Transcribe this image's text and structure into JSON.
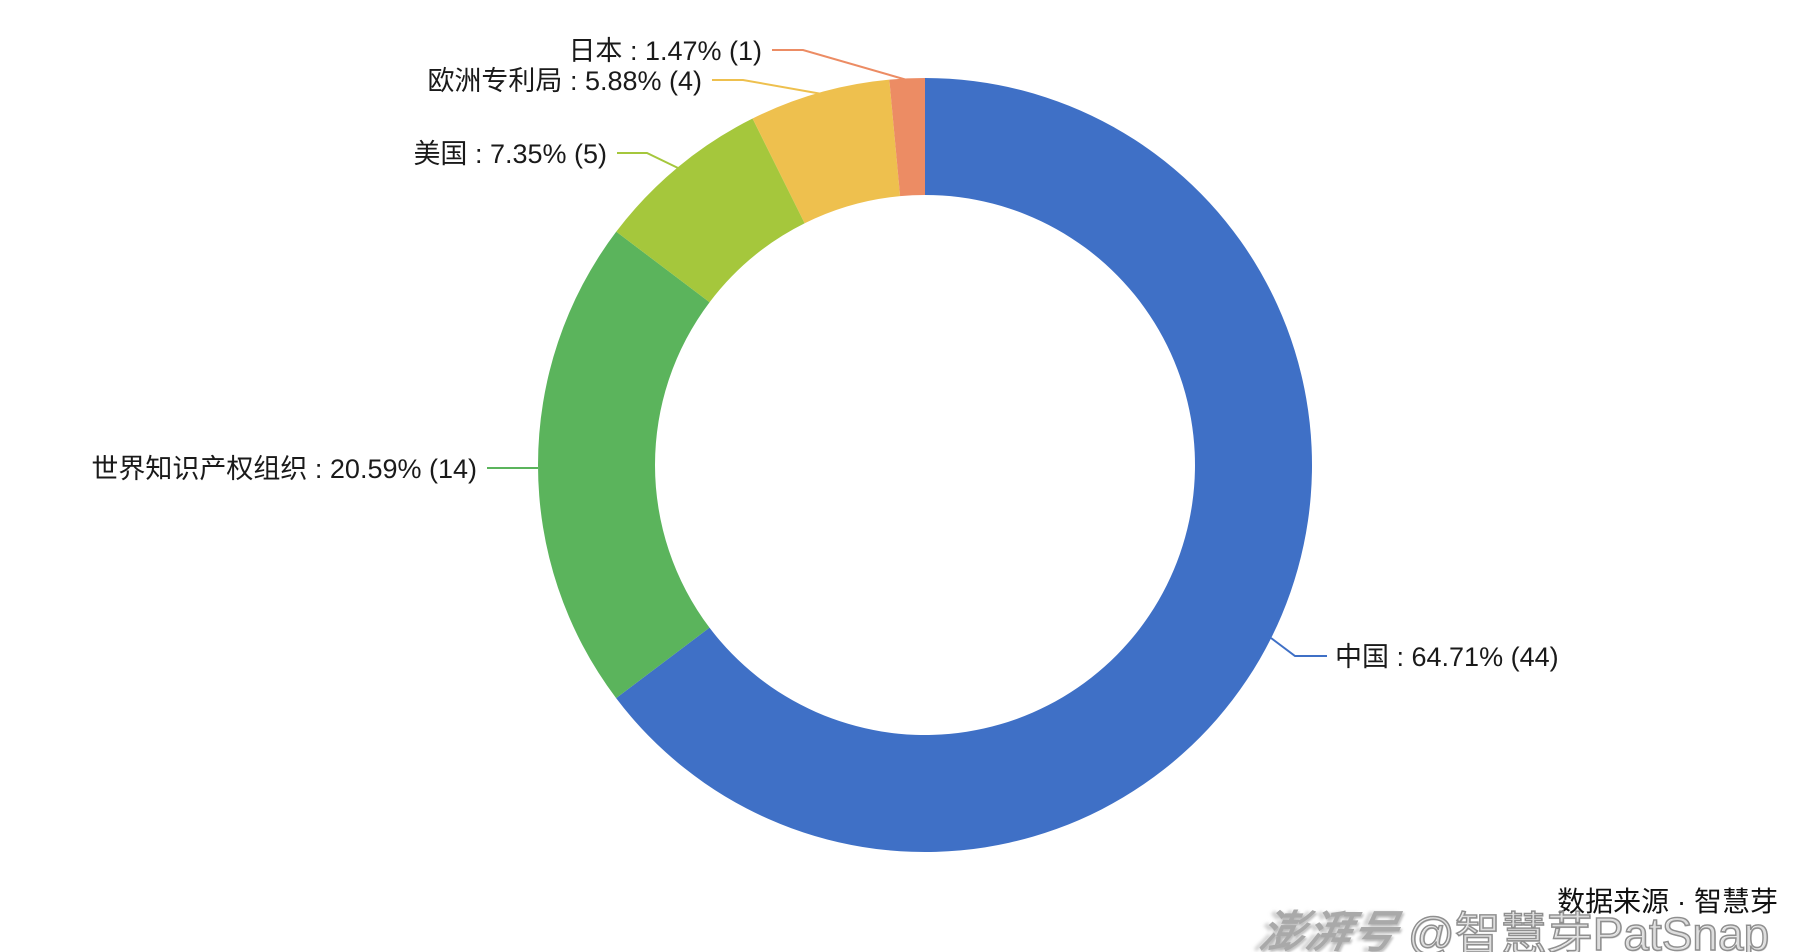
{
  "chart_data": {
    "type": "pie",
    "subtype": "donut",
    "title": "",
    "legend_position": "none",
    "start_angle_deg": 90,
    "clockwise": true,
    "outer_radius_px": 387,
    "inner_radius_px": 270,
    "label_format": "name : percent% (value)",
    "slices": [
      {
        "key": "china",
        "name": "中国",
        "percent": 64.71,
        "value": 44,
        "label": "中国 : 64.71% (44)",
        "color": "#3F70C6"
      },
      {
        "key": "wipo",
        "name": "世界知识产权组织",
        "percent": 20.59,
        "value": 14,
        "label": "世界知识产权组织 : 20.59% (14)",
        "color": "#5BB45C"
      },
      {
        "key": "usa",
        "name": "美国",
        "percent": 7.35,
        "value": 5,
        "label": "美国 : 7.35% (5)",
        "color": "#A5C73C"
      },
      {
        "key": "epo",
        "name": "欧洲专利局",
        "percent": 5.88,
        "value": 4,
        "label": "欧洲专利局 : 5.88% (4)",
        "color": "#EEC04E"
      },
      {
        "key": "japan",
        "name": "日本",
        "percent": 1.47,
        "value": 1,
        "label": "日本 : 1.47% (1)",
        "color": "#EC8C64"
      }
    ]
  },
  "footer": {
    "source_text": "数据来源 · 智慧芽",
    "watermark_logo": "澎湃号",
    "watermark_text": "@智慧芽PatSnap"
  },
  "colors": {
    "background": "#ffffff",
    "label_text": "#1a1a1a",
    "watermark_gray": "#9b9b9b"
  }
}
